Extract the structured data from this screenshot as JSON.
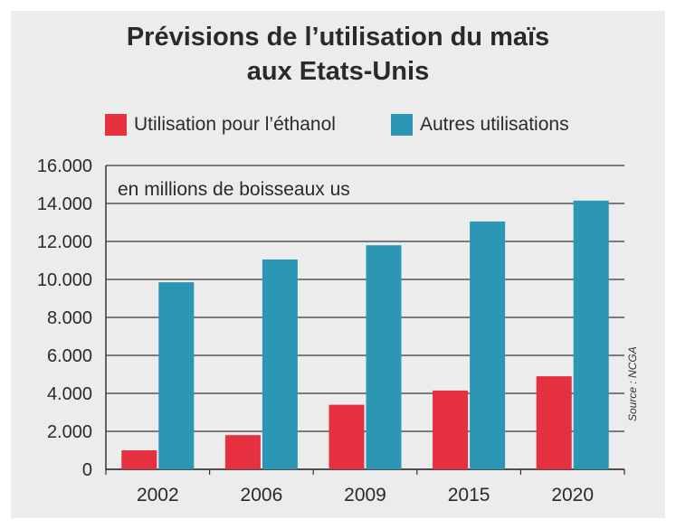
{
  "chart_data": {
    "type": "bar",
    "title": [
      "Prévisions de l’utilisation du maïs",
      "aux Etats-Unis"
    ],
    "annotation": "en millions de boisseaux us",
    "source": "Source : NCGA",
    "categories": [
      "2002",
      "2006",
      "2009",
      "2015",
      "2020"
    ],
    "series": [
      {
        "name": "Utilisation pour l’éthanol",
        "color": "#e4303f",
        "values": [
          1000,
          1800,
          3400,
          4150,
          4900
        ]
      },
      {
        "name": "Autres utilisations",
        "color": "#2b97b4",
        "values": [
          9850,
          11050,
          11800,
          13050,
          14150
        ]
      }
    ],
    "ylim": [
      0,
      16000
    ],
    "yticks": [
      0,
      2000,
      4000,
      6000,
      8000,
      10000,
      12000,
      14000,
      16000
    ],
    "ytick_labels": [
      "0",
      "2.000",
      "4.000",
      "6.000",
      "8.000",
      "10.000",
      "12.000",
      "14.000",
      "16.000"
    ],
    "grid": true,
    "legend_position": "top"
  }
}
